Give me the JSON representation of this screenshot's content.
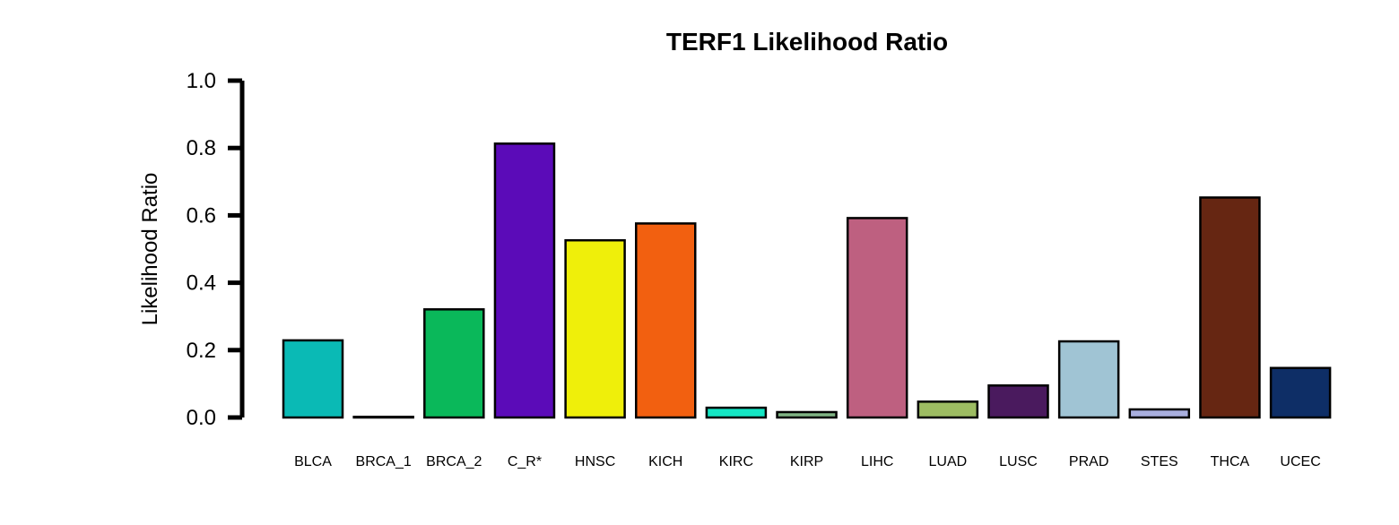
{
  "chart_data": {
    "type": "bar",
    "title": "TERF1 Likelihood Ratio",
    "xlabel": "",
    "ylabel": "Likelihood Ratio",
    "ylim": [
      0,
      1.0
    ],
    "yticks": [
      "0.0",
      "0.2",
      "0.4",
      "0.6",
      "0.8",
      "1.0"
    ],
    "grid": false,
    "legend": "none",
    "categories": [
      "BLCA",
      "BRCA_1",
      "BRCA_2",
      "C_R*",
      "HNSC",
      "KICH",
      "KIRC",
      "KIRP",
      "LIHC",
      "LUAD",
      "LUSC",
      "PRAD",
      "STES",
      "THCA",
      "UCEC"
    ],
    "values": [
      0.229,
      0.002,
      0.321,
      0.813,
      0.526,
      0.576,
      0.029,
      0.016,
      0.592,
      0.047,
      0.095,
      0.226,
      0.024,
      0.653,
      0.147
    ],
    "colors": [
      "#0ABAB5",
      "#FFFFFF",
      "#0AB85A",
      "#5B0BB8",
      "#EFEF0A",
      "#F26010",
      "#14E6C4",
      "#80B484",
      "#BE6080",
      "#9DBC62",
      "#4A1A5E",
      "#A0C4D4",
      "#A8AEDE",
      "#662612",
      "#0E2E66"
    ]
  }
}
